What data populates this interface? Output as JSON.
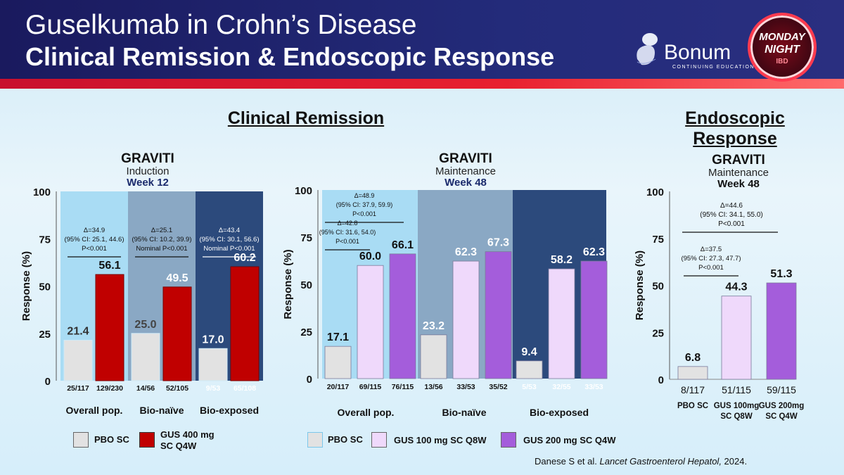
{
  "header": {
    "title": "Guselkumab in Crohn’s Disease",
    "subtitle": "Clinical Remission & Endoscopic Response",
    "brand": "Bonum",
    "brand_sub": "CONTINUING EDUCATION",
    "badge_l1": "MONDAY",
    "badge_l2": "NIGHT",
    "badge_l3": "IBD"
  },
  "sections": {
    "clinical": "Clinical Remission",
    "endoscopic": "Endoscopic Response"
  },
  "charts_head": {
    "c1": {
      "study": "GRAVITI",
      "phase": "Induction",
      "week": "Week 12"
    },
    "c2": {
      "study": "GRAVITI",
      "phase": "Maintenance",
      "week": "Week 48"
    },
    "c3": {
      "study": "GRAVITI",
      "phase": "Maintenance",
      "week": "Week 48"
    }
  },
  "legend": {
    "c1_pbo": "PBO SC",
    "c1_gus": "GUS 400 mg SC Q4W",
    "c2_pbo": "PBO SC",
    "c2_gus100": "GUS 100  mg SC Q8W",
    "c2_gus200": "GUS 200  mg SC Q4W"
  },
  "citation_plain": "Danese S et al. ",
  "citation_journal": "Lancet Gastroenterol Hepatol,",
  "citation_year": " 2024.",
  "colors": {
    "pbo": "#e2e2e2",
    "gus400": "#c00000",
    "gus100": "#efd9fb",
    "gus200": "#a45ddb",
    "band_light": "#a9dcf4",
    "band_mid": "#8aa8c4",
    "band_dark": "#2c4a7c"
  },
  "chart_data": [
    {
      "type": "bar",
      "title": "GRAVITI Induction Week 12",
      "ylabel": "Response (%)",
      "ylim": [
        0,
        100
      ],
      "yticks": [
        0,
        25,
        50,
        75,
        100
      ],
      "groups": [
        "Overall pop.",
        "Bio-naïve",
        "Bio-exposed"
      ],
      "series": [
        {
          "name": "PBO SC",
          "values": [
            21.4,
            25.0,
            17.0
          ],
          "labels": [
            "21.4",
            "25.0",
            "17.0"
          ],
          "n": [
            "25/117",
            "14/56",
            "9/53"
          ]
        },
        {
          "name": "GUS 400 mg SC Q4W",
          "values": [
            56.1,
            49.5,
            60.2
          ],
          "labels": [
            "56.1",
            "49.5",
            "60.2"
          ],
          "n": [
            "129/230",
            "52/105",
            "65/108"
          ]
        }
      ],
      "annotations": [
        [
          "Δ=34.9",
          "(95% CI: 25.1, 44.6)",
          "P<0.001"
        ],
        [
          "Δ=25.1",
          "(95% CI: 10.2, 39.9)",
          "Nominal P<0.001"
        ],
        [
          "Δ=43.4",
          "(95% CI: 30.1, 56.6)",
          "Nominal P<0.001"
        ]
      ]
    },
    {
      "type": "bar",
      "title": "GRAVITI Maintenance Week 48",
      "ylabel": "Response (%)",
      "ylim": [
        0,
        100
      ],
      "yticks": [
        0,
        25,
        50,
        75,
        100
      ],
      "groups": [
        "Overall pop.",
        "Bio-naïve",
        "Bio-exposed"
      ],
      "series": [
        {
          "name": "PBO SC",
          "values": [
            17.1,
            23.2,
            9.4
          ],
          "labels": [
            "17.1",
            "23.2",
            "9.4"
          ],
          "n": [
            "20/117",
            "13/56",
            "5/53"
          ]
        },
        {
          "name": "GUS 100 mg SC Q8W",
          "values": [
            60.0,
            62.3,
            58.2
          ],
          "labels": [
            "60.0",
            "62.3",
            "58.2"
          ],
          "n": [
            "69/115",
            "33/53",
            "32/55"
          ]
        },
        {
          "name": "GUS 200 mg SC Q4W",
          "values": [
            66.1,
            67.3,
            62.3
          ],
          "labels": [
            "66.1",
            "67.3",
            "62.3"
          ],
          "n": [
            "76/115",
            "35/52",
            "33/53"
          ]
        }
      ],
      "annotations": [
        [
          "Δ=48.9",
          "(95% CI: 37.9, 59.9)",
          "P<0.001"
        ],
        [
          "Δ=42.8",
          "(95% CI: 31.6, 54.0)",
          "P<0.001"
        ]
      ]
    },
    {
      "type": "bar",
      "title": "GRAVITI Maintenance Week 48",
      "ylabel": "Response (%)",
      "ylim": [
        0,
        100
      ],
      "yticks": [
        0,
        25,
        50,
        75,
        100
      ],
      "categories": [
        "PBO SC",
        "GUS 100mg SC Q8W",
        "GUS 200mg SC Q4W"
      ],
      "values": [
        6.8,
        44.3,
        51.3
      ],
      "labels": [
        "6.8",
        "44.3",
        "51.3"
      ],
      "n": [
        "8/117",
        "51/115",
        "59/115"
      ],
      "annotations": [
        [
          "Δ=44.6",
          "(95% CI: 34.1, 55.0)",
          "P<0.001"
        ],
        [
          "Δ=37.5",
          "(95% CI: 27.3, 47.7)",
          "P<0.001"
        ]
      ]
    }
  ]
}
